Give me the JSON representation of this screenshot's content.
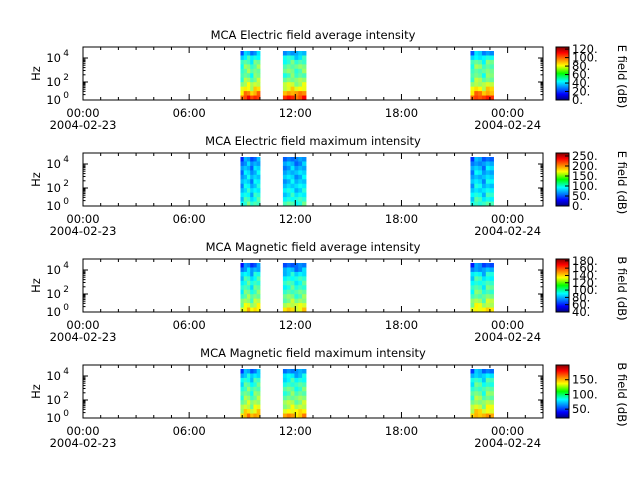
{
  "chart_data": [
    {
      "type": "heatmap",
      "title": "MCA  Electric field average intensity",
      "ylabel": "Hz",
      "y_scale": "log",
      "y_ticks": [
        {
          "base": "10",
          "exp": "0"
        },
        {
          "base": "10",
          "exp": "2"
        },
        {
          "base": "10",
          "exp": "4"
        }
      ],
      "colorbar_label": "E field (dB)",
      "colorbar_range": [
        0,
        125
      ],
      "colorbar_ticks": [
        "0.",
        "20.",
        "40.",
        "60.",
        "80.",
        "100.",
        "120."
      ],
      "colorbar_tick_values": [
        0,
        20,
        40,
        60,
        80,
        100,
        120
      ],
      "x_ticks": [
        {
          "time": "00:00",
          "date": "2004-02-23"
        },
        {
          "time": "06:00",
          "date": ""
        },
        {
          "time": "12:00",
          "date": ""
        },
        {
          "time": "18:00",
          "date": ""
        },
        {
          "time": "00:00",
          "date": "2004-02-24"
        }
      ],
      "x_tick_hours": [
        0,
        6,
        12,
        18,
        24
      ],
      "x_range_hours": [
        0,
        26
      ],
      "data_blocks_hours": [
        [
          8.9,
          10.0
        ],
        [
          11.3,
          12.6
        ],
        [
          21.9,
          23.2
        ]
      ],
      "data_level_profile": [
        38,
        50,
        58,
        62,
        62,
        60,
        65,
        72,
        80,
        92,
        105
      ]
    },
    {
      "type": "heatmap",
      "title": "MCA  Electric field maximum intensity",
      "ylabel": "Hz",
      "y_scale": "log",
      "y_ticks": [
        {
          "base": "10",
          "exp": "0"
        },
        {
          "base": "10",
          "exp": "2"
        },
        {
          "base": "10",
          "exp": "4"
        }
      ],
      "colorbar_label": "E field (dB)",
      "colorbar_range": [
        0,
        265
      ],
      "colorbar_ticks": [
        "0.",
        "50.",
        "100.",
        "150.",
        "200.",
        "250."
      ],
      "colorbar_tick_values": [
        0,
        50,
        100,
        150,
        200,
        250
      ],
      "x_ticks": [
        {
          "time": "00:00",
          "date": "2004-02-23"
        },
        {
          "time": "06:00",
          "date": ""
        },
        {
          "time": "12:00",
          "date": ""
        },
        {
          "time": "18:00",
          "date": ""
        },
        {
          "time": "00:00",
          "date": "2004-02-24"
        }
      ],
      "x_tick_hours": [
        0,
        6,
        12,
        18,
        24
      ],
      "x_range_hours": [
        0,
        26
      ],
      "data_blocks_hours": [
        [
          8.9,
          10.0
        ],
        [
          11.3,
          12.6
        ],
        [
          21.9,
          23.2
        ]
      ],
      "data_level_profile": [
        70,
        80,
        85,
        88,
        90,
        92,
        95,
        100,
        105,
        110,
        120
      ]
    },
    {
      "type": "heatmap",
      "title": "MCA  Magnetic field average intensity",
      "ylabel": "Hz",
      "y_scale": "log",
      "y_ticks": [
        {
          "base": "10",
          "exp": "0"
        },
        {
          "base": "10",
          "exp": "2"
        },
        {
          "base": "10",
          "exp": "4"
        }
      ],
      "colorbar_label": "B field (dB)",
      "colorbar_range": [
        40,
        185
      ],
      "colorbar_ticks": [
        "40.",
        "60.",
        "80.",
        "100.",
        "120.",
        "140.",
        "160.",
        "180."
      ],
      "colorbar_tick_values": [
        40,
        60,
        80,
        100,
        120,
        140,
        160,
        180
      ],
      "x_ticks": [
        {
          "time": "00:00",
          "date": "2004-02-23"
        },
        {
          "time": "06:00",
          "date": ""
        },
        {
          "time": "12:00",
          "date": ""
        },
        {
          "time": "18:00",
          "date": ""
        },
        {
          "time": "00:00",
          "date": "2004-02-24"
        }
      ],
      "x_tick_hours": [
        0,
        6,
        12,
        18,
        24
      ],
      "x_range_hours": [
        0,
        26
      ],
      "data_blocks_hours": [
        [
          8.9,
          10.0
        ],
        [
          11.3,
          12.6
        ],
        [
          21.9,
          23.2
        ]
      ],
      "data_level_profile": [
        75,
        85,
        95,
        100,
        103,
        105,
        108,
        112,
        118,
        125,
        135
      ]
    },
    {
      "type": "heatmap",
      "title": "MCA  Magnetic field maximum intensity",
      "ylabel": "Hz",
      "y_scale": "log",
      "y_ticks": [
        {
          "base": "10",
          "exp": "0"
        },
        {
          "base": "10",
          "exp": "2"
        },
        {
          "base": "10",
          "exp": "4"
        }
      ],
      "colorbar_label": "B field (dB)",
      "colorbar_range": [
        20,
        200
      ],
      "colorbar_ticks": [
        "50.",
        "100.",
        "150."
      ],
      "colorbar_tick_values": [
        50,
        100,
        150
      ],
      "x_ticks": [
        {
          "time": "00:00",
          "date": "2004-02-23"
        },
        {
          "time": "06:00",
          "date": ""
        },
        {
          "time": "12:00",
          "date": ""
        },
        {
          "time": "18:00",
          "date": ""
        },
        {
          "time": "00:00",
          "date": "2004-02-24"
        }
      ],
      "x_tick_hours": [
        0,
        6,
        12,
        18,
        24
      ],
      "x_range_hours": [
        0,
        26
      ],
      "data_blocks_hours": [
        [
          8.9,
          10.0
        ],
        [
          11.3,
          12.6
        ],
        [
          21.9,
          23.2
        ]
      ],
      "data_level_profile": [
        70,
        85,
        95,
        100,
        105,
        108,
        112,
        118,
        125,
        135,
        150
      ]
    }
  ]
}
